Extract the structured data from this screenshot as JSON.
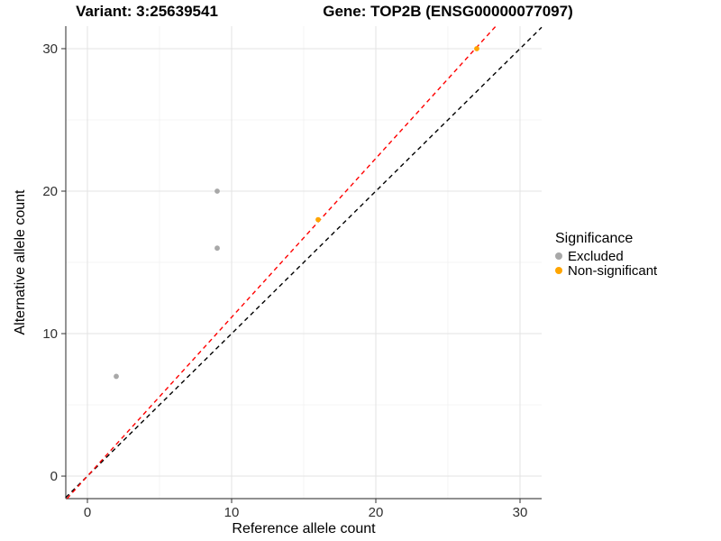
{
  "titles": {
    "left": "Variant: 3:25639541",
    "right": "Gene: TOP2B (ENSG00000077097)"
  },
  "chart_data": {
    "type": "scatter",
    "xlabel": "Reference allele count",
    "ylabel": "Alternative allele count",
    "xlim": [
      -1.5,
      31.5
    ],
    "ylim": [
      -1.58,
      31.58
    ],
    "x_ticks": [
      0,
      10,
      20,
      30
    ],
    "x_minor_ticks": [
      5,
      15,
      25
    ],
    "y_ticks": [
      0,
      10,
      20,
      30
    ],
    "y_minor_ticks": [
      5,
      15,
      25
    ],
    "grid": true,
    "colors": {
      "major_grid": "#e3e3e3",
      "minor_grid": "#f1f1f1",
      "axis_line": "#4d4d4d",
      "tick_mark": "#333333",
      "tick_label": "#303030"
    },
    "series": [
      {
        "name": "Excluded",
        "color": "#a8a8a8",
        "points": [
          [
            2,
            7
          ],
          [
            9,
            16
          ],
          [
            9,
            20
          ]
        ]
      },
      {
        "name": "Non-significant",
        "color": "#ffa500",
        "points": [
          [
            16,
            18
          ],
          [
            27,
            30
          ]
        ]
      }
    ],
    "lines": [
      {
        "name": "identity-line",
        "slope": 1.0,
        "intercept": 0,
        "color": "#000000",
        "dash": "5,4"
      },
      {
        "name": "ratio-line",
        "slope": 1.115,
        "intercept": 0,
        "color": "#ff0000",
        "dash": "5,4"
      }
    ],
    "legend": {
      "title": "Significance",
      "position": "right",
      "entries": [
        {
          "label": "Excluded",
          "color": "#a8a8a8"
        },
        {
          "label": "Non-significant",
          "color": "#ffa500"
        }
      ]
    }
  }
}
